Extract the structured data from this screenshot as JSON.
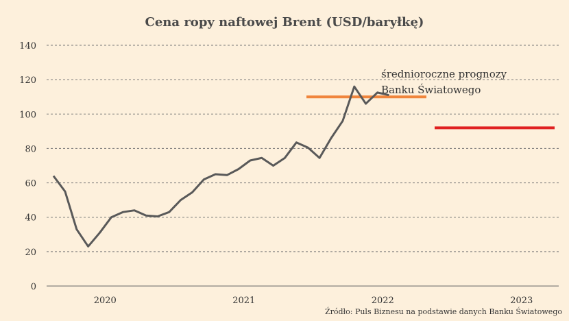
{
  "chart_data": {
    "type": "line",
    "title": "Cena ropy naftowej Brent (USD/baryłkę)",
    "ylim": [
      0,
      140
    ],
    "yticks": [
      0,
      20,
      40,
      60,
      80,
      100,
      120,
      140
    ],
    "xticks": [
      "2020",
      "2021",
      "2022",
      "2023"
    ],
    "grid": "horizontal dashed",
    "series": [
      {
        "values": [
          {
            "x": "2020-01",
            "y": 64
          },
          {
            "x": "2020-02",
            "y": 55
          },
          {
            "x": "2020-03",
            "y": 33
          },
          {
            "x": "2020-04",
            "y": 23
          },
          {
            "x": "2020-05",
            "y": 31
          },
          {
            "x": "2020-06",
            "y": 40
          },
          {
            "x": "2020-07",
            "y": 43
          },
          {
            "x": "2020-08",
            "y": 44
          },
          {
            "x": "2020-09",
            "y": 41
          },
          {
            "x": "2020-10",
            "y": 40.5
          },
          {
            "x": "2020-11",
            "y": 43
          },
          {
            "x": "2020-12",
            "y": 50
          },
          {
            "x": "2021-01",
            "y": 54.5
          },
          {
            "x": "2021-02",
            "y": 62
          },
          {
            "x": "2021-03",
            "y": 65
          },
          {
            "x": "2021-04",
            "y": 64.5
          },
          {
            "x": "2021-05",
            "y": 68
          },
          {
            "x": "2021-06",
            "y": 73
          },
          {
            "x": "2021-07",
            "y": 74.5
          },
          {
            "x": "2021-08",
            "y": 70
          },
          {
            "x": "2021-09",
            "y": 74.5
          },
          {
            "x": "2021-10",
            "y": 83.5
          },
          {
            "x": "2021-11",
            "y": 80.5
          },
          {
            "x": "2021-12",
            "y": 74.5
          },
          {
            "x": "2022-01",
            "y": 86
          },
          {
            "x": "2022-02",
            "y": 96
          },
          {
            "x": "2022-03",
            "y": 116
          },
          {
            "x": "2022-04",
            "y": 106
          },
          {
            "x": "2022-05",
            "y": 112.5
          },
          {
            "x": "2022-06",
            "y": 111
          }
        ],
        "color": "#595959"
      }
    ],
    "forecasts": [
      {
        "year": "2022",
        "value": 110,
        "color": "#f0853c"
      },
      {
        "year": "2023",
        "value": 92,
        "color": "#e02020"
      }
    ],
    "annotation": [
      "średnioroczne prognozy",
      "Banku Światowego"
    ]
  },
  "source": "Źródło: Puls Biznesu na podstawie danych Banku Światowego"
}
